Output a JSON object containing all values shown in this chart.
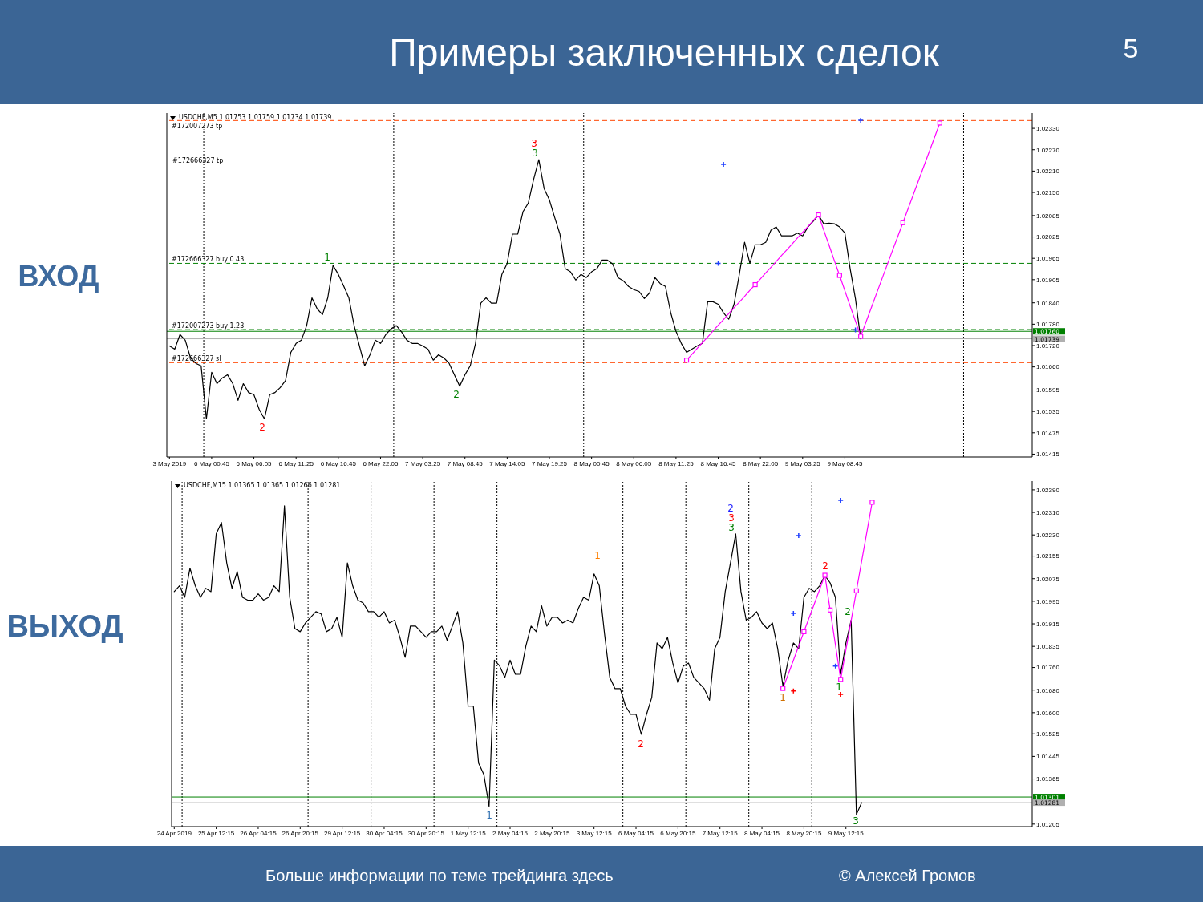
{
  "chart_data": [
    {
      "type": "line",
      "title": "Примеры заключенных сделок",
      "subtitle": "ВХОД",
      "categories": [
        "3 May 2019",
        null,
        null,
        null,
        null,
        null,
        null,
        null,
        "6 May 00:45",
        null,
        null,
        null,
        null,
        null,
        null,
        null,
        "6 May 06:05",
        null,
        null,
        null,
        null,
        null,
        null,
        null,
        "6 May 11:25",
        null,
        null,
        null,
        null,
        null,
        null,
        null,
        "6 May 16:45",
        null,
        null,
        null,
        null,
        null,
        null,
        null,
        "6 May 22:05",
        null,
        null,
        null,
        null,
        null,
        null,
        null,
        "7 May 03:25",
        null,
        null,
        null,
        null,
        null,
        null,
        null,
        "7 May 08:45",
        null,
        null,
        null,
        null,
        null,
        null,
        null,
        "7 May 14:05",
        null,
        null,
        null,
        null,
        null,
        null,
        null,
        "7 May 19:25",
        null,
        null,
        null,
        null,
        null,
        null,
        null,
        "8 May 00:45",
        null,
        null,
        null,
        null,
        null,
        null,
        null,
        "8 May 06:05",
        null,
        null,
        null,
        null,
        null,
        null,
        null,
        "8 May 11:25",
        null,
        null,
        null,
        null,
        null,
        null,
        null,
        "8 May 16:45",
        null,
        null,
        null,
        null,
        null,
        null,
        null,
        "8 May 22:05",
        null,
        null,
        null,
        null,
        null,
        null,
        null,
        "9 May 03:25",
        null,
        null,
        null,
        null,
        null,
        null,
        null,
        "9 May 08:45",
        null,
        null,
        null,
        null,
        null,
        null,
        null,
        null,
        null,
        null,
        null,
        null,
        null,
        null,
        null,
        null,
        null,
        null,
        null,
        null,
        null,
        null,
        null,
        null,
        null,
        null,
        null,
        null,
        null,
        null,
        null,
        null,
        null,
        null,
        null
      ],
      "ylim": [
        1.01407,
        1.02373
      ],
      "yticks": [
        {
          "value": 1.0233,
          "label": "1.02330"
        },
        {
          "value": 1.0227,
          "label": "1.02270"
        },
        {
          "value": 1.0221,
          "label": "1.02210"
        },
        {
          "value": 1.0215,
          "label": "1.02150"
        },
        1.02085,
        1.02025,
        1.01965,
        1.01905,
        {
          "value": 1.0184,
          "label": "1.01840"
        },
        {
          "value": 1.0178,
          "label": "1.01780"
        },
        {
          "value": 1.0172,
          "label": "1.01720"
        },
        {
          "value": 1.0166,
          "label": "1.01660"
        },
        1.01595,
        1.01535,
        1.01475,
        1.01415
      ],
      "series": [
        {
          "color": "#000000",
          "values": [
            1.01719,
            1.0171,
            1.01751,
            1.01735,
            1.01685,
            1.0167,
            1.01663,
            1.01514,
            1.01645,
            1.01613,
            1.01629,
            1.01638,
            1.01613,
            1.01566,
            1.01613,
            1.01588,
            1.01582,
            1.01541,
            1.01514,
            1.01582,
            1.01588,
            1.01602,
            1.01622,
            1.01701,
            1.01726,
            1.01735,
            1.01776,
            1.01854,
            1.01823,
            1.01807,
            1.01854,
            1.01945,
            1.0192,
            1.01888,
            1.01854,
            1.01776,
            1.01719,
            1.01663,
            1.01694,
            1.01735,
            1.01726,
            1.01751,
            1.01767,
            1.01776,
            1.01758,
            1.01735,
            1.01726,
            1.01726,
            1.01719,
            1.0171,
            1.01679,
            1.01694,
            1.01685,
            1.0167,
            1.01638,
            1.01606,
            1.01638,
            1.01663,
            1.01726,
            1.01839,
            1.01854,
            1.01839,
            1.01839,
            1.0192,
            1.01951,
            1.02033,
            1.02033,
            1.02096,
            1.0212,
            1.02186,
            1.02242,
            1.02161,
            1.02129,
            1.0208,
            1.02033,
            1.01936,
            1.01927,
            1.01904,
            1.0192,
            1.01911,
            1.01927,
            1.01936,
            1.0196,
            1.0196,
            1.01949,
            1.01911,
            1.01902,
            1.01886,
            1.01877,
            1.01872,
            1.01852,
            1.01868,
            1.01911,
            1.01894,
            1.01886,
            1.01812,
            1.0176,
            1.01726,
            1.01701,
            1.0171,
            1.01719,
            1.01726,
            1.01843,
            1.01843,
            1.01836,
            1.01812,
            1.01794,
            1.01836,
            1.0192,
            1.0201,
            1.01951,
            1.02003,
            1.02003,
            1.0201,
            1.02044,
            1.02053,
            1.02028,
            1.02028,
            1.02028,
            1.02036,
            1.02028,
            1.02053,
            1.02069,
            1.02087,
            1.02062,
            1.02064,
            1.02062,
            1.02053,
            1.02036,
            1.01936,
            1.01852,
            1.01739,
            null,
            null,
            null,
            null,
            null,
            null,
            null,
            null,
            null,
            null,
            null,
            null,
            null,
            null,
            null,
            null,
            null,
            null,
            null,
            null,
            null,
            null,
            null,
            null,
            null,
            null,
            null,
            null,
            null,
            null,
            null,
            null
          ]
        },
        {
          "color": "#ff00ff",
          "values": [
            null,
            null,
            null,
            null,
            null,
            null,
            null,
            null,
            null,
            null,
            null,
            null,
            null,
            null,
            null,
            null,
            null,
            null,
            null,
            null,
            null,
            null,
            null,
            null,
            null,
            null,
            null,
            null,
            null,
            null,
            null,
            null,
            null,
            null,
            null,
            null,
            null,
            null,
            null,
            null,
            null,
            null,
            null,
            null,
            null,
            null,
            null,
            null,
            null,
            null,
            null,
            null,
            null,
            null,
            null,
            null,
            null,
            null,
            null,
            null,
            null,
            null,
            null,
            null,
            null,
            null,
            null,
            null,
            null,
            null,
            null,
            null,
            null,
            null,
            null,
            null,
            null,
            null,
            null,
            null,
            null,
            null,
            null,
            null,
            null,
            null,
            null,
            null,
            null,
            null,
            null,
            null,
            null,
            null,
            null,
            null,
            null,
            null,
            1.01679,
            1.01695,
            1.01712,
            1.01728,
            1.01744,
            1.01761,
            1.01777,
            1.01793,
            1.0181,
            1.01826,
            1.01842,
            1.01858,
            1.01875,
            1.01891,
            1.01907,
            1.01924,
            1.0194,
            1.01956,
            1.01973,
            1.01989,
            1.02005,
            1.02022,
            1.02038,
            1.02054,
            1.02071,
            1.02087,
            1.02044,
            1.02002,
            1.01959,
            1.01917,
            1.01874,
            1.01831,
            1.01789,
            1.01746,
            1.01786,
            1.01826,
            1.01866,
            1.01906,
            1.01946,
            1.01986,
            1.02025,
            1.02065,
            1.02105,
            1.02145,
            1.02185,
            1.02225,
            1.02265,
            1.02305,
            1.02345,
            null,
            null,
            null,
            null,
            null,
            null,
            null,
            null,
            null,
            null,
            null,
            null,
            null,
            null,
            null,
            null,
            null
          ]
        },
        {
          "type": "scatter",
          "color": "#ff00ff",
          "marker": "square",
          "values": [
            null,
            null,
            null,
            null,
            null,
            null,
            null,
            null,
            null,
            null,
            null,
            null,
            null,
            null,
            null,
            null,
            null,
            null,
            null,
            null,
            null,
            null,
            null,
            null,
            null,
            null,
            null,
            null,
            null,
            null,
            null,
            null,
            null,
            null,
            null,
            null,
            null,
            null,
            null,
            null,
            null,
            null,
            null,
            null,
            null,
            null,
            null,
            null,
            null,
            null,
            null,
            null,
            null,
            null,
            null,
            null,
            null,
            null,
            null,
            null,
            null,
            null,
            null,
            null,
            null,
            null,
            null,
            null,
            null,
            null,
            null,
            null,
            null,
            null,
            null,
            null,
            null,
            null,
            null,
            null,
            null,
            null,
            null,
            null,
            null,
            null,
            null,
            null,
            null,
            null,
            null,
            null,
            null,
            null,
            null,
            null,
            null,
            null,
            1.01679,
            null,
            null,
            null,
            null,
            null,
            null,
            null,
            null,
            null,
            null,
            null,
            null,
            1.01891,
            null,
            null,
            null,
            null,
            null,
            null,
            null,
            null,
            null,
            null,
            null,
            1.02087,
            null,
            null,
            null,
            1.01917,
            null,
            null,
            null,
            1.01746,
            null,
            null,
            null,
            null,
            null,
            null,
            null,
            1.02065,
            null,
            null,
            null,
            null,
            null,
            null,
            1.02345,
            null,
            null,
            null,
            null,
            null,
            null,
            null,
            null,
            null,
            null,
            null,
            null,
            null,
            null,
            null,
            null,
            null
          ]
        },
        {
          "type": "scatter",
          "color": "#2040ff",
          "marker": "cross",
          "values": [
            null,
            null,
            null,
            null,
            null,
            null,
            null,
            null,
            null,
            null,
            null,
            null,
            null,
            null,
            null,
            null,
            null,
            null,
            null,
            null,
            null,
            null,
            null,
            null,
            null,
            null,
            null,
            null,
            null,
            null,
            null,
            null,
            null,
            null,
            null,
            null,
            null,
            null,
            null,
            null,
            null,
            null,
            null,
            null,
            null,
            null,
            null,
            null,
            null,
            null,
            null,
            null,
            null,
            null,
            null,
            null,
            null,
            null,
            null,
            null,
            null,
            null,
            null,
            null,
            null,
            null,
            null,
            null,
            null,
            null,
            null,
            null,
            null,
            null,
            null,
            null,
            null,
            null,
            null,
            null,
            null,
            null,
            null,
            null,
            null,
            null,
            null,
            null,
            null,
            null,
            null,
            null,
            null,
            null,
            null,
            null,
            null,
            null,
            null,
            null,
            null,
            null,
            null,
            null,
            1.01951,
            1.02229,
            null,
            null,
            null,
            null,
            null,
            null,
            null,
            null,
            null,
            null,
            null,
            null,
            null,
            null,
            null,
            null,
            null,
            null,
            null,
            null,
            null,
            null,
            null,
            null,
            1.01764,
            1.02353,
            null,
            null,
            null,
            null,
            null,
            null,
            null,
            null,
            null,
            null,
            null,
            null,
            null,
            null,
            null,
            null,
            null,
            null,
            null,
            null,
            null,
            null,
            null,
            null,
            null,
            null,
            null,
            null,
            null,
            null,
            null,
            null
          ]
        }
      ],
      "ref_lines": [
        {
          "axis": "y",
          "value": 1.02352,
          "label": "#172007273 tp",
          "color": "#ff4500",
          "line_style": "dashed"
        },
        {
          "axis": "y",
          "value": 1.01951,
          "label": "#172666327 buy 0.43",
          "color": "#008000",
          "line_style": "dashed"
        },
        {
          "axis": "y",
          "value": 1.01765,
          "label": "#172007273 buy 1.23",
          "color": "#008000",
          "line_style": "dashed"
        },
        {
          "axis": "y",
          "value": 1.0176,
          "label": "1.01760",
          "color": "#008000",
          "line_style": "solid"
        },
        {
          "axis": "y",
          "value": 1.01739,
          "label": "1.01739",
          "color": "#b0b0b0",
          "line_style": "solid"
        },
        {
          "axis": "y",
          "value": 1.01672,
          "label": "#172666327 sl",
          "color": "#ff4500",
          "line_style": "dashed"
        }
      ],
      "annotations": [
        "USDCHF,M5 1.01753 1.01759 1.01734 1.01739",
        "5",
        "#172666327 tp",
        "2",
        "1",
        "2",
        "3",
        "3"
      ]
    },
    {
      "type": "line",
      "subtitle": "ВЫХОД",
      "categories": [
        "24 Apr 2019",
        null,
        null,
        null,
        null,
        null,
        null,
        null,
        "25 Apr 12:15",
        null,
        null,
        null,
        null,
        null,
        null,
        null,
        "26 Apr 04:15",
        null,
        null,
        null,
        null,
        null,
        null,
        null,
        "26 Apr 20:15",
        null,
        null,
        null,
        null,
        null,
        null,
        null,
        "29 Apr 12:15",
        null,
        null,
        null,
        null,
        null,
        null,
        null,
        "30 Apr 04:15",
        null,
        null,
        null,
        null,
        null,
        null,
        null,
        "30 Apr 20:15",
        null,
        null,
        null,
        null,
        null,
        null,
        null,
        "1 May 12:15",
        null,
        null,
        null,
        null,
        null,
        null,
        null,
        "2 May 04:15",
        null,
        null,
        null,
        null,
        null,
        null,
        null,
        "2 May 20:15",
        null,
        null,
        null,
        null,
        null,
        null,
        null,
        "3 May 12:15",
        null,
        null,
        null,
        null,
        null,
        null,
        null,
        "6 May 04:15",
        null,
        null,
        null,
        null,
        null,
        null,
        null,
        "6 May 20:15",
        null,
        null,
        null,
        null,
        null,
        null,
        null,
        "7 May 12:15",
        null,
        null,
        null,
        null,
        null,
        null,
        null,
        "8 May 04:15",
        null,
        null,
        null,
        null,
        null,
        null,
        null,
        "8 May 20:15",
        null,
        null,
        null,
        null,
        null,
        null,
        null,
        "9 May 12:15",
        null,
        null,
        null,
        null,
        null,
        null,
        null,
        null,
        null,
        null,
        null,
        null,
        null,
        null,
        null,
        null,
        null,
        null,
        null,
        null,
        null,
        null,
        null,
        null,
        null,
        null,
        null,
        null,
        null,
        null,
        null,
        null,
        null,
        null,
        null
      ],
      "ylim": [
        1.01196,
        1.02421
      ],
      "yticks": [
        {
          "value": 1.0239,
          "label": "1.02390"
        },
        {
          "value": 1.0231,
          "label": "1.02310"
        },
        {
          "value": 1.0223,
          "label": "1.02230"
        },
        1.02155,
        1.02075,
        1.01995,
        1.01915,
        1.01835,
        {
          "value": 1.0176,
          "label": "1.01760"
        },
        {
          "value": 1.0168,
          "label": "1.01680"
        },
        {
          "value": 1.016,
          "label": "1.01600"
        },
        1.01525,
        1.01445,
        1.01365,
        1.01205
      ],
      "series": [
        {
          "color": "#000000",
          "values": [
            1.02029,
            1.0205,
            1.02009,
            1.02112,
            1.0205,
            1.02009,
            1.02041,
            1.02029,
            1.02234,
            1.02274,
            1.02131,
            1.02041,
            1.021,
            1.02009,
            1.01999,
            1.01999,
            1.02021,
            1.01999,
            1.02009,
            1.0205,
            1.02029,
            1.02333,
            1.02009,
            1.01898,
            1.01887,
            1.01918,
            1.01938,
            1.01958,
            1.0195,
            1.01887,
            1.01898,
            1.01938,
            1.01867,
            1.02131,
            1.0205,
            1.01999,
            1.01989,
            1.01958,
            1.01958,
            1.01938,
            1.01958,
            1.01918,
            1.01928,
            1.01867,
            1.01796,
            1.01907,
            1.01907,
            1.01887,
            1.01867,
            1.01887,
            1.01887,
            1.01907,
            1.01857,
            1.01907,
            1.01958,
            1.01847,
            1.01623,
            1.01623,
            1.01421,
            1.01381,
            1.01268,
            1.01786,
            1.01766,
            1.01725,
            1.01786,
            1.01736,
            1.01736,
            1.01836,
            1.01907,
            1.01887,
            1.01979,
            1.01907,
            1.01938,
            1.01938,
            1.01918,
            1.01928,
            1.01918,
            1.01969,
            1.02009,
            1.01999,
            1.02092,
            1.0205,
            1.01879,
            1.01725,
            1.01685,
            1.01685,
            1.01623,
            1.01594,
            1.01594,
            1.01523,
            1.01594,
            1.01654,
            1.01847,
            1.01827,
            1.01867,
            1.01776,
            1.01705,
            1.01765,
            1.01776,
            1.01725,
            1.01705,
            1.01685,
            1.01644,
            1.01827,
            1.01867,
            1.02029,
            1.02131,
            1.02234,
            1.02029,
            1.01928,
            1.01938,
            1.01958,
            1.01918,
            1.01898,
            1.01918,
            1.01827,
            1.01694,
            1.01786,
            1.01847,
            1.01827,
            1.02009,
            1.02041,
            1.02029,
            1.0205,
            1.02086,
            1.0206,
            1.02009,
            1.01736,
            1.01847,
            1.01928,
            1.01239,
            1.01281,
            null,
            null,
            null,
            null,
            null,
            null,
            null,
            null,
            null,
            null,
            null,
            null,
            null,
            null,
            null,
            null,
            null,
            null,
            null,
            null,
            null,
            null,
            null,
            null,
            null,
            null,
            null,
            null,
            null,
            null,
            null,
            null
          ]
        },
        {
          "color": "#ff00ff",
          "values": [
            null,
            null,
            null,
            null,
            null,
            null,
            null,
            null,
            null,
            null,
            null,
            null,
            null,
            null,
            null,
            null,
            null,
            null,
            null,
            null,
            null,
            null,
            null,
            null,
            null,
            null,
            null,
            null,
            null,
            null,
            null,
            null,
            null,
            null,
            null,
            null,
            null,
            null,
            null,
            null,
            null,
            null,
            null,
            null,
            null,
            null,
            null,
            null,
            null,
            null,
            null,
            null,
            null,
            null,
            null,
            null,
            null,
            null,
            null,
            null,
            null,
            null,
            null,
            null,
            null,
            null,
            null,
            null,
            null,
            null,
            null,
            null,
            null,
            null,
            null,
            null,
            null,
            null,
            null,
            null,
            null,
            null,
            null,
            null,
            null,
            null,
            null,
            null,
            null,
            null,
            null,
            null,
            null,
            null,
            null,
            null,
            null,
            null,
            null,
            null,
            null,
            null,
            null,
            null,
            null,
            null,
            null,
            null,
            null,
            null,
            null,
            null,
            null,
            null,
            null,
            null,
            1.01686,
            1.01736,
            1.01786,
            1.01836,
            1.01887,
            1.01937,
            1.01987,
            1.02037,
            1.02087,
            1.01964,
            1.01841,
            1.01718,
            1.01823,
            1.01927,
            1.02032,
            1.02137,
            1.02241,
            1.02346,
            null,
            null,
            null,
            null,
            null,
            null,
            null,
            null,
            null,
            null,
            null,
            null,
            null,
            null,
            null,
            null,
            null,
            null,
            null,
            null,
            null,
            null,
            null,
            null,
            null,
            null,
            null,
            null,
            null,
            null
          ]
        },
        {
          "type": "scatter",
          "color": "#ff00ff",
          "marker": "square",
          "values": [
            null,
            null,
            null,
            null,
            null,
            null,
            null,
            null,
            null,
            null,
            null,
            null,
            null,
            null,
            null,
            null,
            null,
            null,
            null,
            null,
            null,
            null,
            null,
            null,
            null,
            null,
            null,
            null,
            null,
            null,
            null,
            null,
            null,
            null,
            null,
            null,
            null,
            null,
            null,
            null,
            null,
            null,
            null,
            null,
            null,
            null,
            null,
            null,
            null,
            null,
            null,
            null,
            null,
            null,
            null,
            null,
            null,
            null,
            null,
            null,
            null,
            null,
            null,
            null,
            null,
            null,
            null,
            null,
            null,
            null,
            null,
            null,
            null,
            null,
            null,
            null,
            null,
            null,
            null,
            null,
            null,
            null,
            null,
            null,
            null,
            null,
            null,
            null,
            null,
            null,
            null,
            null,
            null,
            null,
            null,
            null,
            null,
            null,
            null,
            null,
            null,
            null,
            null,
            null,
            null,
            null,
            null,
            null,
            null,
            null,
            null,
            null,
            null,
            null,
            null,
            null,
            1.01686,
            null,
            null,
            null,
            1.01887,
            null,
            null,
            null,
            1.02087,
            1.01964,
            null,
            1.01718,
            null,
            null,
            1.02032,
            null,
            null,
            1.02346,
            null,
            null,
            null,
            null,
            null,
            null,
            null,
            null,
            null,
            null,
            null,
            null,
            null,
            null,
            null,
            null,
            null,
            null,
            null,
            null,
            null,
            null,
            null,
            null,
            null,
            null,
            null,
            null,
            null,
            null
          ]
        },
        {
          "type": "scatter",
          "color": "#2040ff",
          "marker": "cross",
          "values": [
            null,
            null,
            null,
            null,
            null,
            null,
            null,
            null,
            null,
            null,
            null,
            null,
            null,
            null,
            null,
            null,
            null,
            null,
            null,
            null,
            null,
            null,
            null,
            null,
            null,
            null,
            null,
            null,
            null,
            null,
            null,
            null,
            null,
            null,
            null,
            null,
            null,
            null,
            null,
            null,
            null,
            null,
            null,
            null,
            null,
            null,
            null,
            null,
            null,
            null,
            null,
            null,
            null,
            null,
            null,
            null,
            null,
            null,
            null,
            null,
            null,
            null,
            null,
            null,
            null,
            null,
            null,
            null,
            null,
            null,
            null,
            null,
            null,
            null,
            null,
            null,
            null,
            null,
            null,
            null,
            null,
            null,
            null,
            null,
            null,
            null,
            null,
            null,
            null,
            null,
            null,
            null,
            null,
            null,
            null,
            null,
            null,
            null,
            null,
            null,
            null,
            null,
            null,
            null,
            null,
            null,
            null,
            null,
            null,
            null,
            null,
            null,
            null,
            null,
            null,
            null,
            null,
            null,
            1.01952,
            1.02228,
            null,
            null,
            null,
            null,
            null,
            null,
            1.01765,
            1.02353,
            null,
            null,
            null,
            null,
            null,
            null,
            null,
            null,
            null,
            null,
            null,
            null,
            null,
            null,
            null,
            null,
            null,
            null,
            null,
            null,
            null,
            null,
            null,
            null,
            null,
            null,
            null,
            null,
            null,
            null,
            null,
            null,
            null,
            null,
            null,
            null
          ]
        },
        {
          "type": "scatter",
          "color": "#ff0000",
          "marker": "cross",
          "values": [
            null,
            null,
            null,
            null,
            null,
            null,
            null,
            null,
            null,
            null,
            null,
            null,
            null,
            null,
            null,
            null,
            null,
            null,
            null,
            null,
            null,
            null,
            null,
            null,
            null,
            null,
            null,
            null,
            null,
            null,
            null,
            null,
            null,
            null,
            null,
            null,
            null,
            null,
            null,
            null,
            null,
            null,
            null,
            null,
            null,
            null,
            null,
            null,
            null,
            null,
            null,
            null,
            null,
            null,
            null,
            null,
            null,
            null,
            null,
            null,
            null,
            null,
            null,
            null,
            null,
            null,
            null,
            null,
            null,
            null,
            null,
            null,
            null,
            null,
            null,
            null,
            null,
            null,
            null,
            null,
            null,
            null,
            null,
            null,
            null,
            null,
            null,
            null,
            null,
            null,
            null,
            null,
            null,
            null,
            null,
            null,
            null,
            null,
            null,
            null,
            null,
            null,
            null,
            null,
            null,
            null,
            null,
            null,
            null,
            null,
            null,
            null,
            null,
            null,
            null,
            null,
            null,
            null,
            1.01677,
            null,
            null,
            null,
            null,
            null,
            null,
            null,
            null,
            1.01665,
            null,
            null,
            null,
            null,
            null,
            null,
            null,
            null,
            null,
            null,
            null,
            null,
            null,
            null,
            null,
            null,
            null,
            null,
            null,
            null,
            null,
            null,
            null,
            null,
            null,
            null,
            null,
            null,
            null,
            null,
            null,
            null,
            null,
            null,
            null,
            null
          ]
        }
      ],
      "ref_lines": [
        {
          "axis": "y",
          "value": 1.01301,
          "label": "1.01301",
          "color": "#008000",
          "line_style": "solid"
        },
        {
          "axis": "y",
          "value": 1.01281,
          "label": "1.01281",
          "color": "#b0b0b0",
          "line_style": "solid"
        }
      ],
      "annotations": [
        "USDCHF,M15 1.01365 1.01365 1.01266 1.01281",
        "Больше информации по теме трейдинга здесь",
        "© Алексей Громов",
        "1",
        "1",
        "2",
        "2",
        "3",
        "3",
        "1",
        "2",
        "1",
        "2",
        "3"
      ]
    }
  ]
}
